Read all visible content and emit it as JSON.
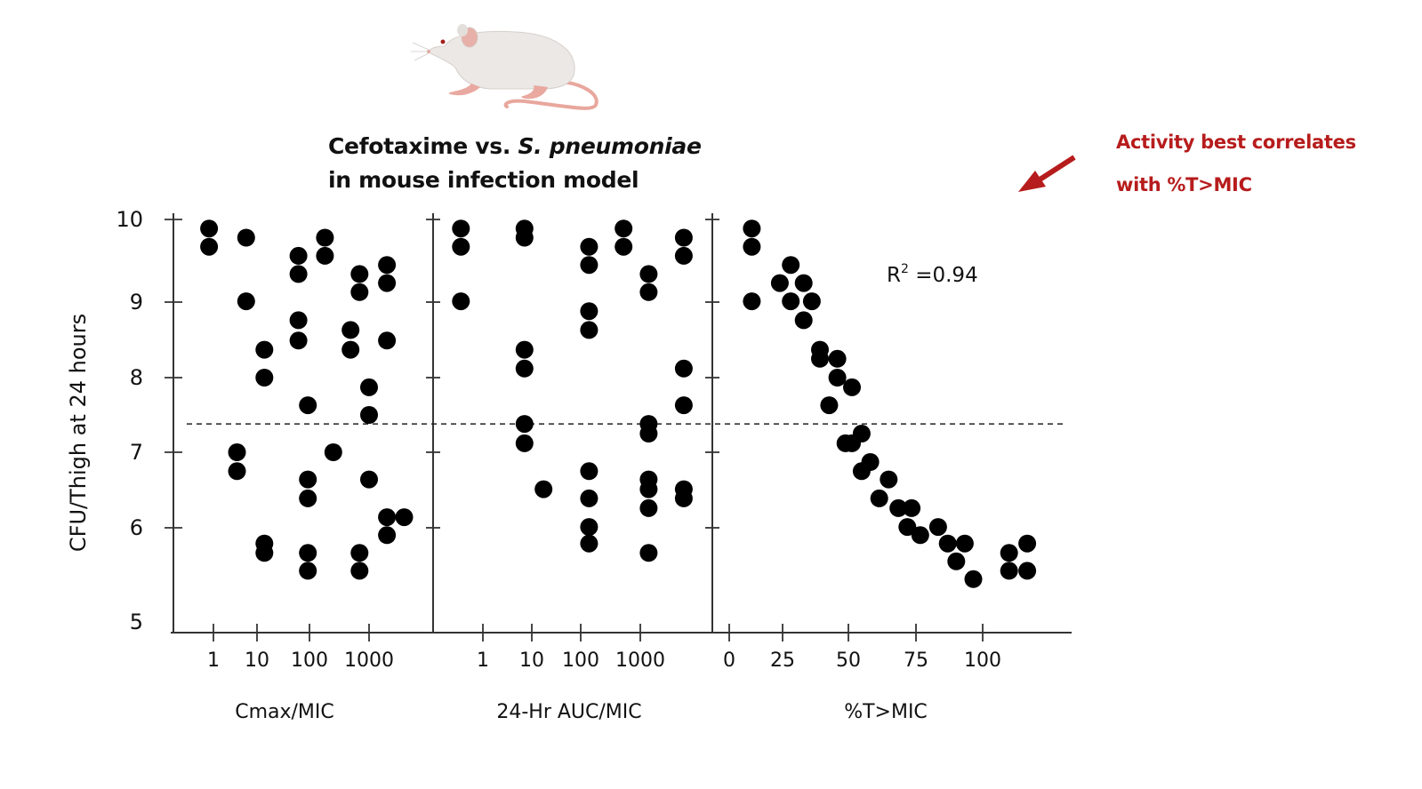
{
  "title": {
    "line1_prefix": "Cefotaxime vs. ",
    "line1_italic": "S. pneumoniae",
    "line2": "in mouse infection model"
  },
  "annotation": {
    "line1": "Activity best correlates",
    "line2": "with %T>MIC",
    "color": "#b71c1c"
  },
  "mouse_illustration": "mouse-icon",
  "chart_data": {
    "type": "scatter",
    "ylabel": "CFU/Thigh at 24 hours",
    "ylim": [
      5,
      10
    ],
    "yticks": [
      "10",
      "9",
      "8",
      "7",
      "6",
      "5"
    ],
    "reference_line": {
      "y": 7.38,
      "style": "dashed"
    },
    "marker_color": "#000000",
    "panels": [
      {
        "xlabel": "Cmax/MIC",
        "xscale": "log10",
        "xticks": [
          "1",
          "10",
          "100",
          "1000"
        ],
        "points": [
          [
            -0.1,
            9.89
          ],
          [
            -0.1,
            9.67
          ],
          [
            0.75,
            9.78
          ],
          [
            0.75,
            9.01
          ],
          [
            1.14,
            8.37
          ],
          [
            1.14,
            8.0
          ],
          [
            1.79,
            9.56
          ],
          [
            1.79,
            9.34
          ],
          [
            1.79,
            8.76
          ],
          [
            1.79,
            8.49
          ],
          [
            2.26,
            9.78
          ],
          [
            2.26,
            9.56
          ],
          [
            2.69,
            8.63
          ],
          [
            2.69,
            8.37
          ],
          [
            2.84,
            9.34
          ],
          [
            2.84,
            9.12
          ],
          [
            3.0,
            7.87
          ],
          [
            3.0,
            7.5
          ],
          [
            3.3,
            9.45
          ],
          [
            3.3,
            9.23
          ],
          [
            3.3,
            8.49
          ],
          [
            1.97,
            7.63
          ],
          [
            0.54,
            7.0
          ],
          [
            0.54,
            6.75
          ],
          [
            1.14,
            5.85
          ],
          [
            1.14,
            5.76
          ],
          [
            1.97,
            6.64
          ],
          [
            1.97,
            6.39
          ],
          [
            2.4,
            7.0
          ],
          [
            3.0,
            6.64
          ],
          [
            3.3,
            6.14
          ],
          [
            3.59,
            6.14
          ],
          [
            3.3,
            5.93
          ],
          [
            1.97,
            5.76
          ],
          [
            1.97,
            5.59
          ],
          [
            2.84,
            5.76
          ],
          [
            2.84,
            5.59
          ]
        ]
      },
      {
        "xlabel": "24-Hr AUC/MIC",
        "xscale": "log10",
        "xticks": [
          "1",
          "10",
          "100",
          "1000"
        ],
        "points": [
          [
            -0.45,
            9.89
          ],
          [
            -0.45,
            9.67
          ],
          [
            -0.45,
            9.01
          ],
          [
            0.85,
            9.89
          ],
          [
            0.85,
            9.78
          ],
          [
            0.85,
            8.37
          ],
          [
            0.85,
            8.12
          ],
          [
            2.14,
            9.67
          ],
          [
            2.14,
            9.45
          ],
          [
            2.14,
            8.88
          ],
          [
            2.14,
            8.63
          ],
          [
            2.72,
            9.89
          ],
          [
            2.72,
            9.67
          ],
          [
            3.14,
            9.34
          ],
          [
            3.14,
            9.12
          ],
          [
            3.73,
            9.78
          ],
          [
            3.73,
            9.56
          ],
          [
            3.73,
            8.12
          ],
          [
            3.73,
            7.63
          ],
          [
            0.85,
            7.38
          ],
          [
            0.85,
            7.12
          ],
          [
            1.24,
            6.51
          ],
          [
            2.14,
            6.75
          ],
          [
            2.14,
            6.39
          ],
          [
            2.14,
            6.01
          ],
          [
            2.14,
            5.85
          ],
          [
            3.14,
            7.38
          ],
          [
            3.14,
            7.25
          ],
          [
            3.14,
            6.64
          ],
          [
            3.14,
            6.51
          ],
          [
            3.14,
            6.26
          ],
          [
            3.14,
            5.76
          ],
          [
            3.73,
            6.51
          ],
          [
            3.73,
            6.39
          ]
        ]
      },
      {
        "xlabel": "%T>MIC",
        "xscale": "linear",
        "xticks": [
          "0",
          "25",
          "50",
          "75",
          "100"
        ],
        "annotation": {
          "r2_prefix": "R",
          "r2_sup": "2",
          "r2_value": " =0.94"
        },
        "points": [
          [
            10.6,
            9.89
          ],
          [
            10.6,
            9.67
          ],
          [
            10.6,
            9.01
          ],
          [
            28.1,
            9.45
          ],
          [
            23.7,
            9.23
          ],
          [
            33.0,
            9.23
          ],
          [
            28.1,
            9.01
          ],
          [
            36.1,
            9.01
          ],
          [
            33.0,
            8.76
          ],
          [
            39.2,
            8.37
          ],
          [
            39.2,
            8.25
          ],
          [
            45.8,
            8.25
          ],
          [
            45.8,
            8.0
          ],
          [
            51.3,
            7.87
          ],
          [
            42.7,
            7.63
          ],
          [
            54.9,
            7.25
          ],
          [
            48.9,
            7.12
          ],
          [
            51.3,
            7.12
          ],
          [
            58.1,
            6.87
          ],
          [
            54.9,
            6.75
          ],
          [
            64.9,
            6.64
          ],
          [
            61.4,
            6.39
          ],
          [
            68.5,
            6.26
          ],
          [
            73.4,
            6.26
          ],
          [
            71.8,
            6.01
          ],
          [
            76.6,
            5.93
          ],
          [
            83.3,
            6.01
          ],
          [
            86.9,
            5.85
          ],
          [
            93.3,
            5.85
          ],
          [
            90.1,
            5.68
          ],
          [
            96.5,
            5.51
          ],
          [
            109.9,
            5.76
          ],
          [
            116.7,
            5.85
          ],
          [
            109.9,
            5.59
          ],
          [
            116.7,
            5.59
          ]
        ]
      }
    ]
  }
}
